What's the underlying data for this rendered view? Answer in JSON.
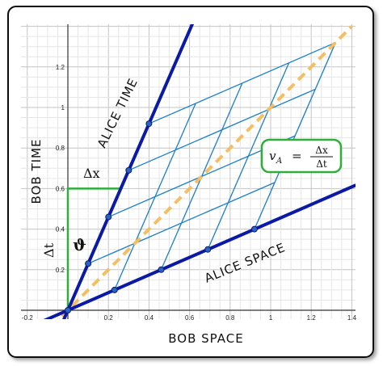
{
  "axes": {
    "x_ticks": [
      "-0.2",
      "0.2",
      "0.4",
      "0.6",
      "0.8",
      "1",
      "1.2",
      "1.4"
    ],
    "y_ticks": [
      "0.2",
      "0.4",
      "0.6",
      "0.8",
      "1",
      "1.2"
    ]
  },
  "labels": {
    "alice_time": "ALICE TIME",
    "alice_space": "ALICE SPACE",
    "bob_time": "BOB TIME",
    "bob_space": "BOB SPACE",
    "delta_x": "Δx",
    "delta_t": "Δt",
    "angle": "ϑ"
  },
  "formula": {
    "lhs": "v",
    "subscript": "A",
    "equals": "=",
    "numerator": "Δx",
    "denominator": "Δt"
  }
}
